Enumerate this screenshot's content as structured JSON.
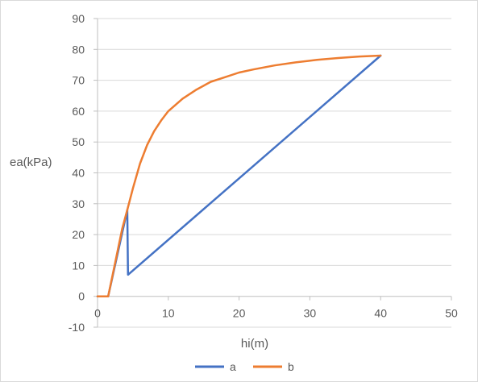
{
  "chart_data": {
    "type": "line",
    "xlabel": "hi(m)",
    "ylabel": "ea(kPa)",
    "xlim": [
      0,
      50
    ],
    "ylim": [
      -10,
      90
    ],
    "x_ticks": [
      0,
      10,
      20,
      30,
      40,
      50
    ],
    "y_ticks": [
      -10,
      0,
      10,
      20,
      30,
      40,
      50,
      60,
      70,
      80,
      90
    ],
    "grid": "horizontal",
    "legend_position": "bottom",
    "series": [
      {
        "name": "a",
        "color": "#4472C4",
        "points": [
          [
            0,
            0
          ],
          [
            1.5,
            0
          ],
          [
            4.2,
            28
          ],
          [
            4.3,
            7
          ],
          [
            40,
            78
          ]
        ]
      },
      {
        "name": "b",
        "color": "#ED7D31",
        "points": [
          [
            0,
            0
          ],
          [
            1.5,
            0
          ],
          [
            3.5,
            22
          ],
          [
            4.2,
            28
          ],
          [
            5,
            35
          ],
          [
            6,
            43
          ],
          [
            7,
            49
          ],
          [
            8,
            53.5
          ],
          [
            9,
            57
          ],
          [
            10,
            60
          ],
          [
            12,
            64
          ],
          [
            14,
            67
          ],
          [
            16,
            69.5
          ],
          [
            18,
            71
          ],
          [
            20,
            72.5
          ],
          [
            22,
            73.5
          ],
          [
            25,
            74.8
          ],
          [
            28,
            75.8
          ],
          [
            31,
            76.6
          ],
          [
            34,
            77.2
          ],
          [
            37,
            77.7
          ],
          [
            40,
            78
          ]
        ]
      }
    ]
  }
}
